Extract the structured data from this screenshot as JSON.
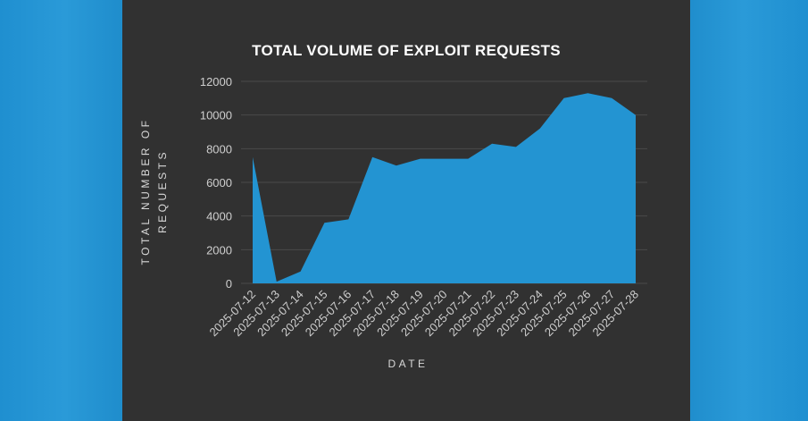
{
  "chart_data": {
    "type": "area",
    "title": "TOTAL VOLUME OF EXPLOIT REQUESTS",
    "xlabel": "DATE",
    "ylabel_line1": "TOTAL NUMBER OF",
    "ylabel_line2": "REQUESTS",
    "x": [
      "2025-07-12",
      "2025-07-13",
      "2025-07-14",
      "2025-07-15",
      "2025-07-16",
      "2025-07-17",
      "2025-07-18",
      "2025-07-19",
      "2025-07-20",
      "2025-07-21",
      "2025-07-22",
      "2025-07-23",
      "2025-07-24",
      "2025-07-25",
      "2025-07-26",
      "2025-07-27",
      "2025-07-28"
    ],
    "values": [
      7500,
      100,
      700,
      3600,
      3800,
      7500,
      7000,
      7400,
      7400,
      7400,
      8300,
      8100,
      9200,
      11000,
      11300,
      11000,
      10000
    ],
    "ylim": [
      0,
      12000
    ],
    "yticks": [
      "0",
      "2000",
      "4000",
      "6000",
      "8000",
      "10000",
      "12000"
    ],
    "grid": true,
    "legend": "none",
    "colors": {
      "area": "#2394d2",
      "grid": "#4a4a4a",
      "panel": "#313131"
    }
  }
}
